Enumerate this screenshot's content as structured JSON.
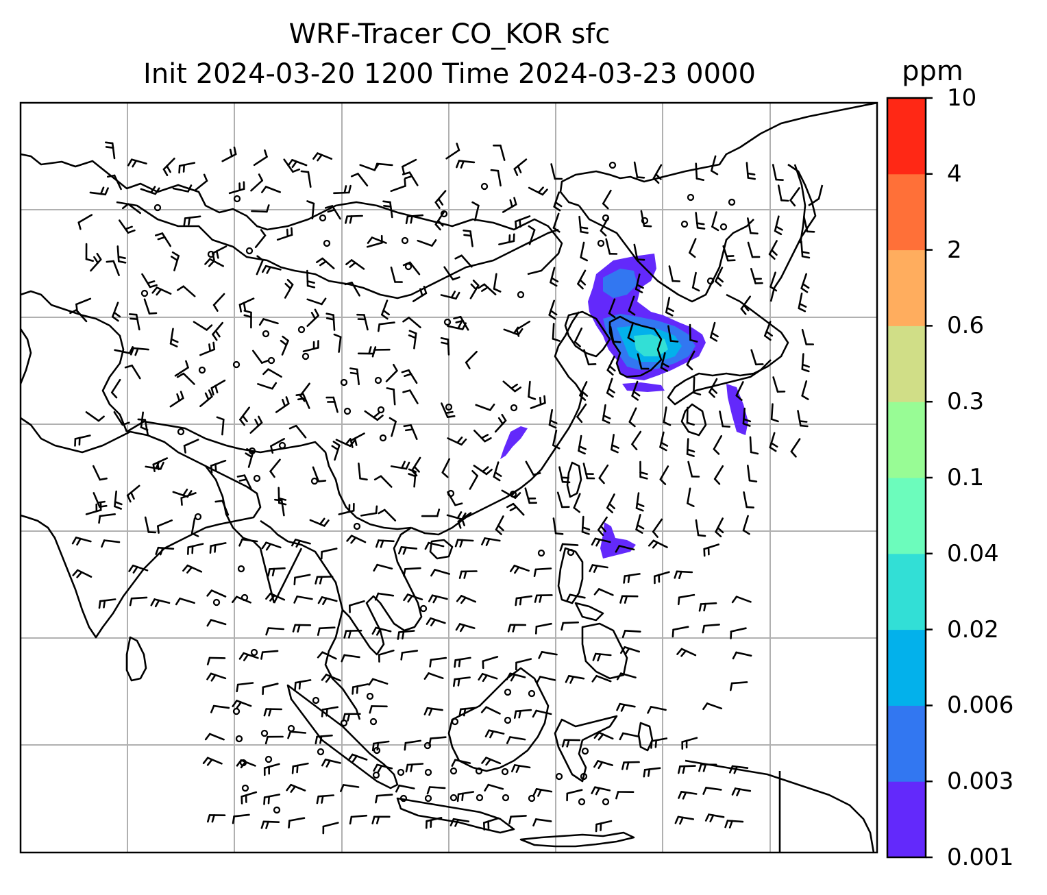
{
  "title_line1": "WRF-Tracer CO_KOR sfc",
  "title_line2": "Init 2024-03-20 1200 Time 2024-03-23 0000",
  "colorbar": {
    "unit": "ppm",
    "ticks": [
      "0.001",
      "0.003",
      "0.006",
      "0.02",
      "0.04",
      "0.1",
      "0.3",
      "0.6",
      "2",
      "4",
      "10"
    ],
    "colors": [
      "#6329fb",
      "#3277f1",
      "#03b1eb",
      "#32dfd6",
      "#6cfcbc",
      "#98fc95",
      "#d0de87",
      "#ffad5e",
      "#ff7038",
      "#ff2815"
    ]
  },
  "map": {
    "gridlines": true,
    "grid_color": "#b0b0b0",
    "coastline_color": "#000000",
    "tracer_field": "CO_KOR",
    "wind_symbols": "barbs"
  }
}
